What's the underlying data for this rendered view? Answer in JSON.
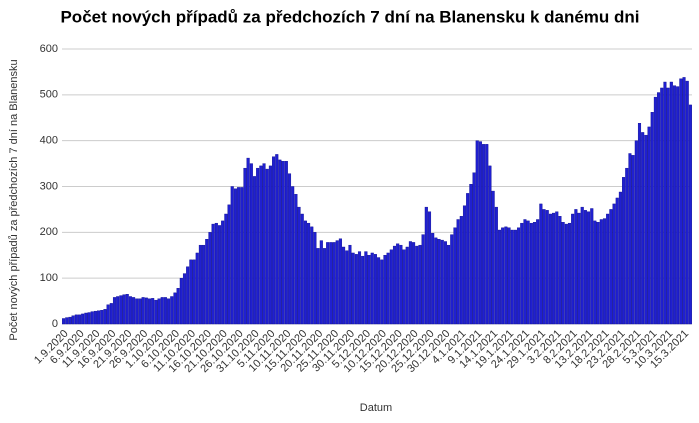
{
  "chart_data": {
    "type": "bar",
    "title": "Počet nových případů za předchozích 7 dní na Blanensku k danému dni",
    "x_label": "Datum",
    "y_label": "Počet nových případů za předchozích 7 dní na Blanensku",
    "color": "#2020d0",
    "grid": true,
    "ylim": [
      0,
      600
    ],
    "yticks": [
      0,
      100,
      200,
      300,
      400,
      500,
      600
    ],
    "categories": [
      "1.9.2020",
      null,
      null,
      null,
      null,
      "6.9.2020",
      null,
      null,
      null,
      null,
      "11.9.2020",
      null,
      null,
      null,
      null,
      "16.9.2020",
      null,
      null,
      null,
      null,
      "21.9.2020",
      null,
      null,
      null,
      null,
      "26.9.2020",
      null,
      null,
      null,
      null,
      "1.10.2020",
      null,
      null,
      null,
      null,
      "6.10.2020",
      null,
      null,
      null,
      null,
      "11.10.2020",
      null,
      null,
      null,
      null,
      "16.10.2020",
      null,
      null,
      null,
      null,
      "21.10.2020",
      null,
      null,
      null,
      null,
      "26.10.2020",
      null,
      null,
      null,
      null,
      "31.10.2020",
      null,
      null,
      null,
      null,
      "5.11.2020",
      null,
      null,
      null,
      null,
      "10.11.2020",
      null,
      null,
      null,
      null,
      "15.11.2020",
      null,
      null,
      null,
      null,
      "20.11.2020",
      null,
      null,
      null,
      null,
      "25.11.2020",
      null,
      null,
      null,
      null,
      "30.11.2020",
      null,
      null,
      null,
      null,
      "5.12.2020",
      null,
      null,
      null,
      null,
      "10.12.2020",
      null,
      null,
      null,
      null,
      "15.12.2020",
      null,
      null,
      null,
      null,
      "20.12.2020",
      null,
      null,
      null,
      null,
      "25.12.2020",
      null,
      null,
      null,
      null,
      "30.12.2020",
      null,
      null,
      null,
      null,
      "4.1.2021",
      null,
      null,
      null,
      null,
      "9.1.2021",
      null,
      null,
      null,
      null,
      "14.1.2021",
      null,
      null,
      null,
      null,
      "19.1.2021",
      null,
      null,
      null,
      null,
      "24.1.2021",
      null,
      null,
      null,
      null,
      "29.1.2021",
      null,
      null,
      null,
      null,
      "3.2.2021",
      null,
      null,
      null,
      null,
      "8.2.2021",
      null,
      null,
      null,
      null,
      "13.2.2021",
      null,
      null,
      null,
      null,
      "18.2.2021",
      null,
      null,
      null,
      null,
      "23.2.2021",
      null,
      null,
      null,
      null,
      "28.2.2021",
      null,
      null,
      null,
      null,
      "5.3.2021",
      null,
      null,
      null,
      null,
      "10.3.2021",
      null,
      null,
      null,
      null,
      "15.3.2021",
      null,
      null
    ],
    "values": [
      12,
      14,
      15,
      18,
      20,
      20,
      22,
      24,
      25,
      27,
      28,
      29,
      30,
      32,
      42,
      45,
      58,
      60,
      62,
      64,
      65,
      60,
      58,
      55,
      55,
      58,
      57,
      55,
      56,
      52,
      55,
      58,
      58,
      55,
      60,
      68,
      78,
      100,
      110,
      125,
      140,
      140,
      155,
      172,
      172,
      185,
      200,
      218,
      220,
      215,
      225,
      240,
      260,
      300,
      295,
      298,
      298,
      340,
      362,
      350,
      322,
      340,
      345,
      350,
      338,
      345,
      365,
      370,
      358,
      355,
      355,
      328,
      300,
      283,
      255,
      240,
      225,
      220,
      212,
      200,
      165,
      182,
      165,
      178,
      178,
      178,
      182,
      186,
      168,
      160,
      172,
      155,
      152,
      158,
      148,
      158,
      150,
      155,
      152,
      145,
      140,
      150,
      155,
      162,
      170,
      175,
      172,
      162,
      168,
      180,
      178,
      170,
      172,
      195,
      255,
      245,
      198,
      188,
      185,
      183,
      180,
      172,
      195,
      210,
      228,
      235,
      258,
      285,
      305,
      330,
      400,
      398,
      392,
      392,
      345,
      290,
      255,
      205,
      210,
      212,
      210,
      205,
      205,
      210,
      220,
      228,
      225,
      220,
      222,
      228,
      262,
      250,
      248,
      240,
      242,
      245,
      235,
      222,
      218,
      220,
      240,
      250,
      242,
      255,
      248,
      245,
      252,
      225,
      222,
      228,
      230,
      240,
      250,
      262,
      275,
      288,
      320,
      340,
      372,
      368,
      400,
      438,
      418,
      412,
      430,
      462,
      495,
      505,
      515,
      528,
      515,
      528,
      520,
      518,
      535,
      538,
      530,
      478
    ]
  }
}
